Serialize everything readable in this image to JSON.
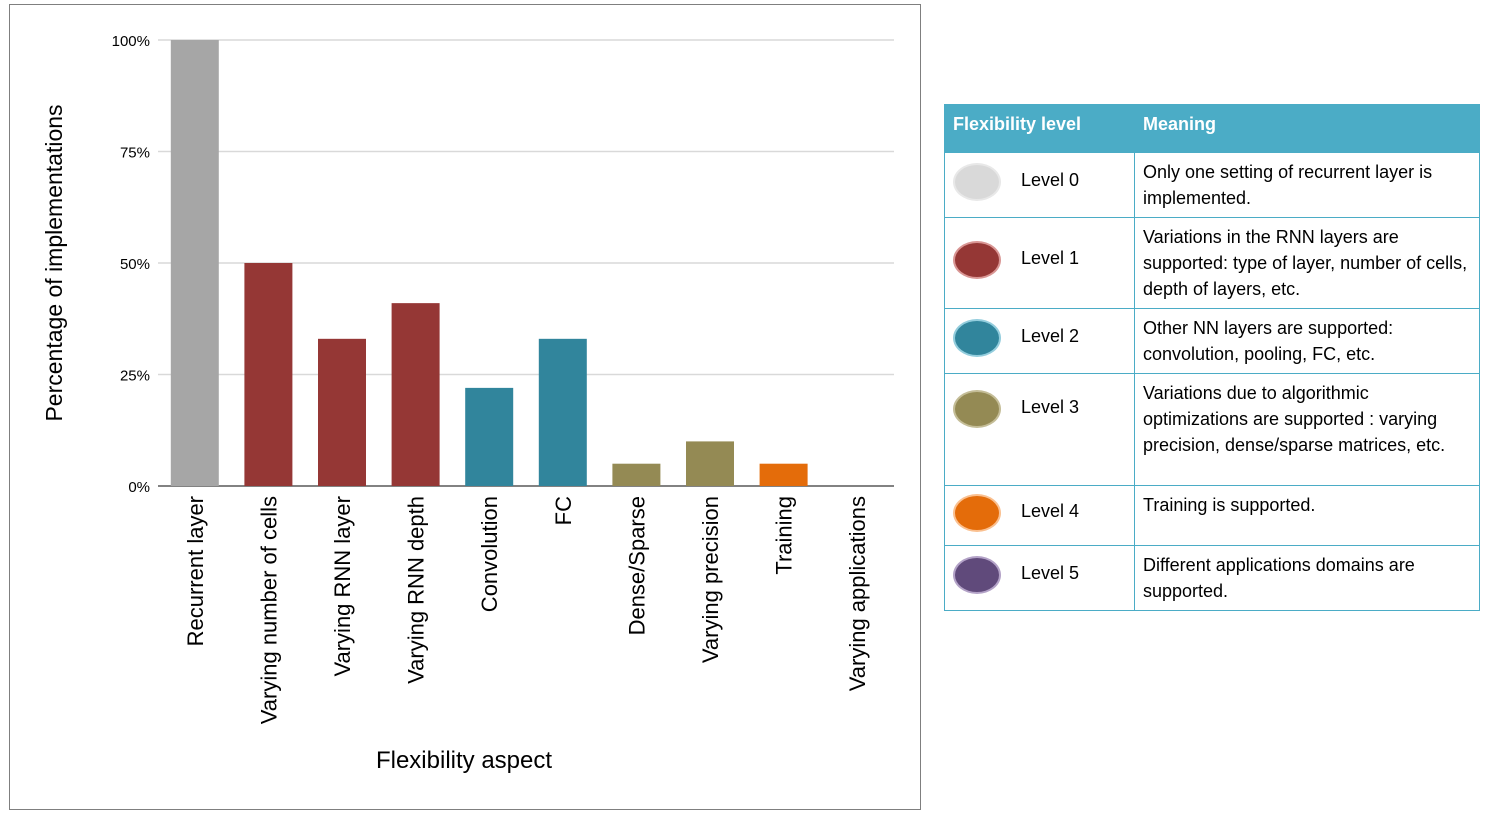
{
  "chart_data": {
    "type": "bar",
    "title": "",
    "xlabel": "Flexibility aspect",
    "ylabel": "Percentage of implementations",
    "ylim": [
      0,
      100
    ],
    "yticks": [
      {
        "value": 0,
        "label": "0%"
      },
      {
        "value": 25,
        "label": "25%"
      },
      {
        "value": 50,
        "label": "50%"
      },
      {
        "value": 75,
        "label": "75%"
      },
      {
        "value": 100,
        "label": "100%"
      }
    ],
    "grid": true,
    "categories": [
      "Recurrent layer",
      "Varying number of cells",
      "Varying RNN layer",
      "Varying RNN depth",
      "Convolution",
      "FC",
      "Dense/Sparse",
      "Varying precision",
      "Training",
      "Varying applications"
    ],
    "values": [
      100,
      50,
      33,
      41,
      22,
      33,
      5,
      10,
      5,
      0
    ],
    "levels": [
      0,
      1,
      1,
      1,
      2,
      2,
      3,
      3,
      4,
      5
    ]
  },
  "colors": {
    "level0_bar": "#a6a6a6",
    "level0_dot": "#d9d9d9",
    "level1": "#953735",
    "level2": "#31859c",
    "level3": "#948a54",
    "level4": "#e46c0a",
    "level5": "#604a7b",
    "table_header": "#4bacc6",
    "gridline": "#d9d9d9"
  },
  "legend": {
    "headers": {
      "level": "Flexibility level",
      "meaning": "Meaning"
    },
    "rows": [
      {
        "level": "Level 0",
        "meaning": "Only one setting of recurrent layer is implemented."
      },
      {
        "level": "Level 1",
        "meaning": "Variations in the RNN layers are supported:  type of layer,  number of cells, depth of layers, etc."
      },
      {
        "level": "Level 2",
        "meaning": "Other NN layers are supported: convolution, pooling, FC, etc."
      },
      {
        "level": "Level 3",
        "meaning": "Variations due to algorithmic optimizations are supported : varying precision, dense/sparse matrices, etc."
      },
      {
        "level": "Level 4",
        "meaning": "Training is supported."
      },
      {
        "level": "Level 5",
        "meaning": "Different applications domains are supported."
      }
    ]
  }
}
